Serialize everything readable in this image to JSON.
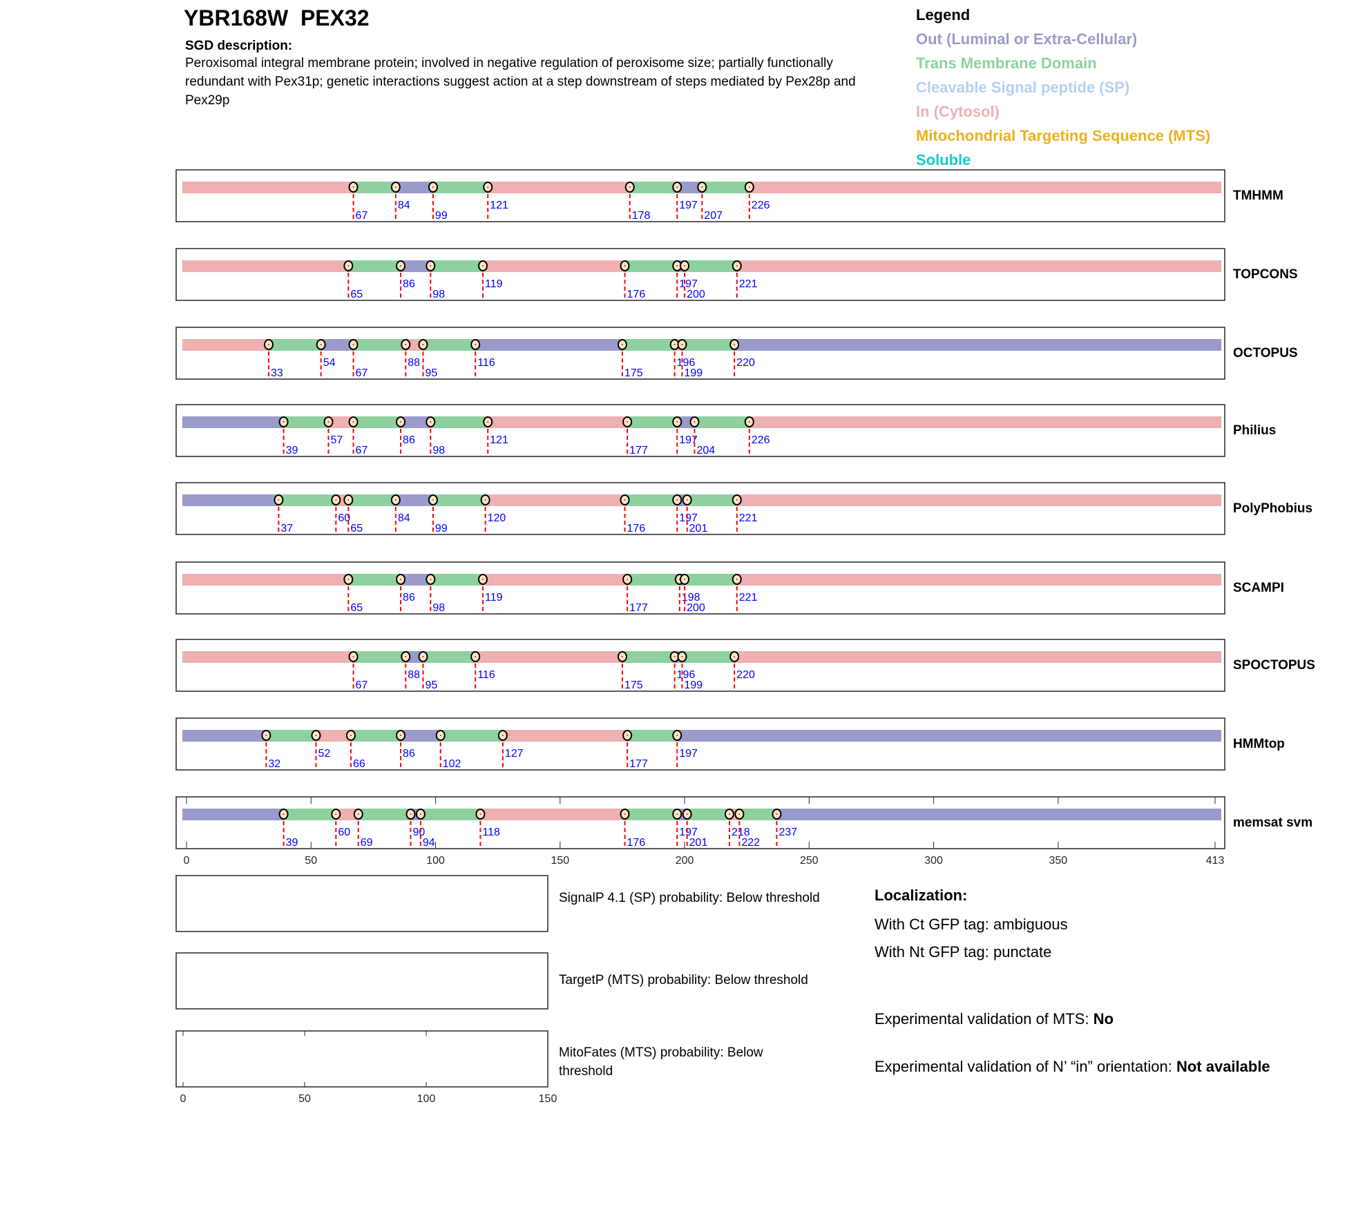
{
  "header": {
    "title": "YBR168W  PEX32",
    "sgd_heading": "SGD description:",
    "sgd_text": "Peroxisomal integral membrane protein; involved in negative regulation of peroxisome size; partially functionally redundant with Pex31p; genetic interactions suggest action at a step downstream of steps mediated by Pex28p and Pex29p"
  },
  "legend": {
    "title": "Legend",
    "items": [
      {
        "label": "Out (Luminal or Extra-Cellular)",
        "color": "#9b9bcb"
      },
      {
        "label": "Trans Membrane Domain",
        "color": "#8fd19e"
      },
      {
        "label": "Cleavable Signal peptide (SP)",
        "color": "#b4d0f2"
      },
      {
        "label": "In (Cytosol)",
        "color": "#eeb0b0"
      },
      {
        "label": "Mitochondrial Targeting Sequence (MTS)",
        "color": "#edb020"
      },
      {
        "label": "Soluble",
        "color": "#18cccc"
      }
    ]
  },
  "chart_data": {
    "type": "topology-tracks",
    "protein_length": 413,
    "xlim": [
      0,
      413
    ],
    "xticks": [
      0,
      50,
      100,
      150,
      200,
      250,
      300,
      350,
      413
    ],
    "region_colors": {
      "in": "#eeb0b0",
      "tm": "#8fd19e",
      "out": "#9b9bcb"
    },
    "methods": [
      {
        "name": "TMHMM",
        "boundaries": [
          67,
          84,
          99,
          121,
          178,
          197,
          207,
          226
        ],
        "regions": [
          "in",
          "tm",
          "out",
          "tm",
          "in",
          "tm",
          "out",
          "tm",
          "in"
        ]
      },
      {
        "name": "TOPCONS",
        "boundaries": [
          65,
          86,
          98,
          119,
          176,
          197,
          200,
          221
        ],
        "regions": [
          "in",
          "tm",
          "out",
          "tm",
          "in",
          "tm",
          "out",
          "tm",
          "in"
        ]
      },
      {
        "name": "OCTOPUS",
        "boundaries": [
          33,
          54,
          67,
          88,
          95,
          116,
          175,
          196,
          199,
          220
        ],
        "regions": [
          "in",
          "tm",
          "out",
          "tm",
          "in",
          "tm",
          "out",
          "tm",
          "in",
          "tm",
          "out"
        ]
      },
      {
        "name": "Philius",
        "boundaries": [
          39,
          57,
          67,
          86,
          98,
          121,
          177,
          197,
          204,
          226
        ],
        "regions": [
          "out",
          "tm",
          "in",
          "tm",
          "out",
          "tm",
          "in",
          "tm",
          "out",
          "tm",
          "in"
        ]
      },
      {
        "name": "PolyPhobius",
        "boundaries": [
          37,
          60,
          65,
          84,
          99,
          120,
          176,
          197,
          201,
          221
        ],
        "regions": [
          "out",
          "tm",
          "in",
          "tm",
          "out",
          "tm",
          "in",
          "tm",
          "out",
          "tm",
          "in"
        ]
      },
      {
        "name": "SCAMPI",
        "boundaries": [
          65,
          86,
          98,
          119,
          177,
          198,
          200,
          221
        ],
        "regions": [
          "in",
          "tm",
          "out",
          "tm",
          "in",
          "tm",
          "out",
          "tm",
          "in"
        ]
      },
      {
        "name": "SPOCTOPUS",
        "boundaries": [
          67,
          88,
          95,
          116,
          175,
          196,
          199,
          220
        ],
        "regions": [
          "in",
          "tm",
          "out",
          "tm",
          "in",
          "tm",
          "out",
          "tm",
          "in"
        ]
      },
      {
        "name": "HMMtop",
        "boundaries": [
          32,
          52,
          66,
          86,
          102,
          127,
          177,
          197
        ],
        "regions": [
          "out",
          "tm",
          "in",
          "tm",
          "out",
          "tm",
          "in",
          "tm",
          "out"
        ]
      },
      {
        "name": "memsat svm",
        "boundaries": [
          39,
          60,
          69,
          90,
          94,
          118,
          176,
          197,
          201,
          218,
          222,
          237
        ],
        "regions": [
          "out",
          "tm",
          "in",
          "tm",
          "out",
          "tm",
          "in",
          "tm",
          "out",
          "tm",
          "in",
          "tm",
          "out"
        ]
      }
    ],
    "probability_panels": {
      "xlim": [
        0,
        150
      ],
      "xticks": [
        0,
        50,
        100,
        150
      ],
      "panels": [
        {
          "label": "SignalP 4.1 (SP) probability: Below threshold"
        },
        {
          "label": "TargetP (MTS) probability: Below threshold"
        },
        {
          "label": "MitoFates (MTS) probability: Below threshold"
        }
      ]
    }
  },
  "localization": {
    "heading": "Localization:",
    "ct_gfp": "With Ct GFP tag: ambiguous",
    "nt_gfp": "With Nt GFP tag: punctate",
    "mts_validation_label": "Experimental validation of MTS: ",
    "mts_validation_value": "No",
    "orientation_label": "Experimental validation of N’ “in” orientation: ",
    "orientation_value": "Not available"
  }
}
